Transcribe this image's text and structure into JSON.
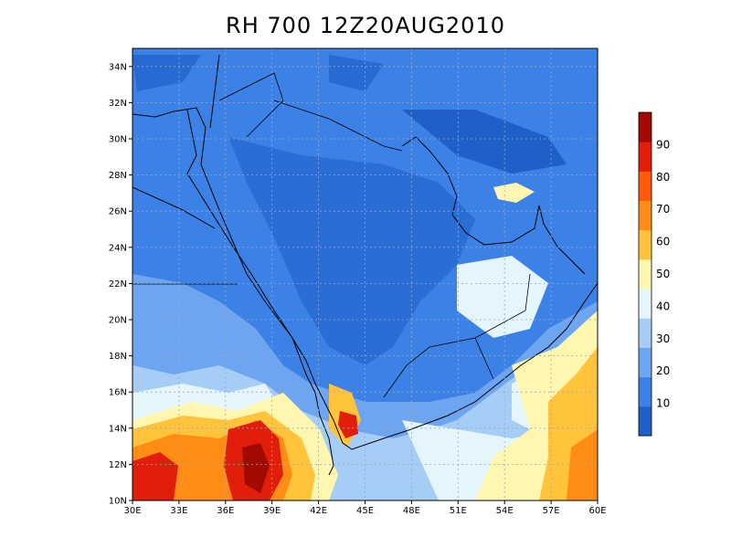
{
  "title": "RH 700 12Z20AUG2010",
  "map": {
    "lat_range": [
      10,
      35
    ],
    "lon_range": [
      30,
      60
    ],
    "lat_ticks": [
      "10N",
      "12N",
      "14N",
      "16N",
      "18N",
      "20N",
      "22N",
      "24N",
      "26N",
      "28N",
      "30N",
      "32N",
      "34N"
    ],
    "lat_values": [
      10,
      12,
      14,
      16,
      18,
      20,
      22,
      24,
      26,
      28,
      30,
      32,
      34
    ],
    "lon_ticks": [
      "30E",
      "33E",
      "36E",
      "39E",
      "42E",
      "45E",
      "48E",
      "51E",
      "54E",
      "57E",
      "60E"
    ],
    "lon_values": [
      30,
      33,
      36,
      39,
      42,
      45,
      48,
      51,
      54,
      57,
      60
    ],
    "grid": true
  },
  "colorbar": {
    "labels": [
      "10",
      "20",
      "30",
      "40",
      "50",
      "60",
      "70",
      "80",
      "90"
    ],
    "label_values": [
      10,
      20,
      30,
      40,
      50,
      60,
      70,
      80,
      90
    ],
    "colors": [
      "#1e5fc8",
      "#3c82e6",
      "#6ea5f0",
      "#a6cdf5",
      "#e4f6fb",
      "#fff7b0",
      "#ffc43c",
      "#ff8c14",
      "#ff5a0a",
      "#e11e0a",
      "#a00a00"
    ],
    "range": [
      0,
      100
    ]
  }
}
